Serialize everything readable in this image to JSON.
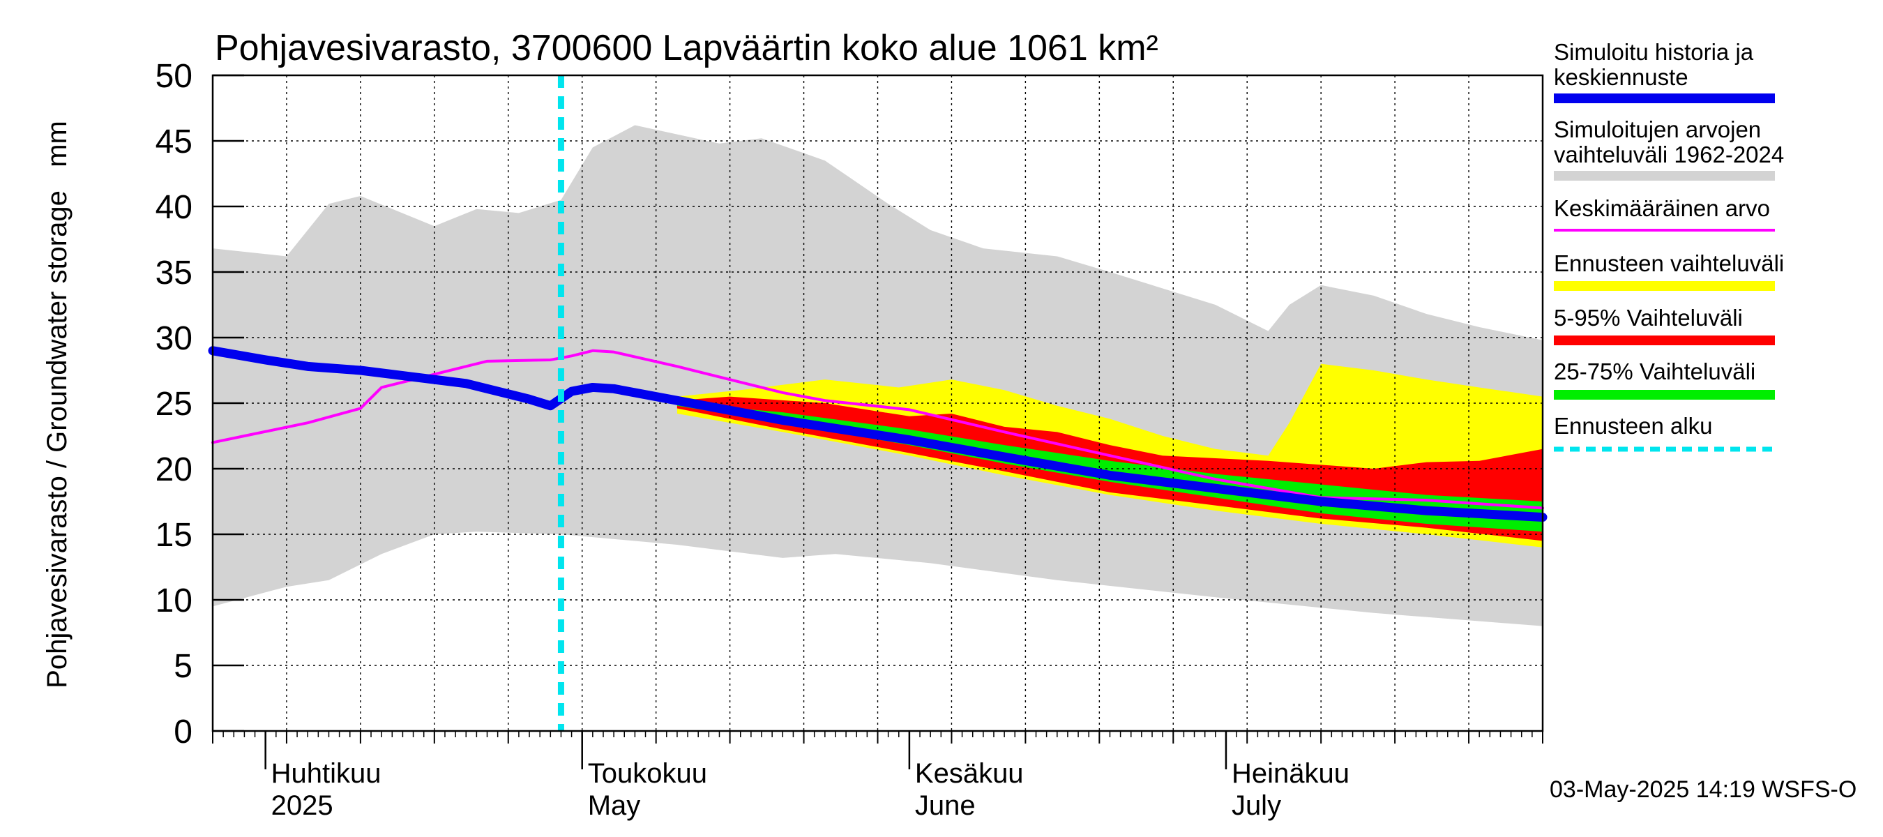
{
  "chart_data": {
    "type": "area",
    "title": "Pohjavesivarasto, 3700600 Lapväärtin koko alue 1061 km²",
    "ylabel": "Pohjavesivarasto / Groundwater storage   mm",
    "ylim": [
      0,
      50
    ],
    "yticks": [
      0,
      5,
      10,
      15,
      20,
      25,
      30,
      35,
      40,
      45,
      50
    ],
    "xlim": [
      "2025-03-27",
      "2025-07-31"
    ],
    "month_labels": [
      {
        "date": "2025-04-01",
        "fi": "Huhtikuu",
        "en": "2025"
      },
      {
        "date": "2025-05-01",
        "fi": "Toukokuu",
        "en": "May"
      },
      {
        "date": "2025-06-01",
        "fi": "Kesäkuu",
        "en": "June"
      },
      {
        "date": "2025-07-01",
        "fi": "Heinäkuu",
        "en": "July"
      }
    ],
    "forecast_start": "2025-04-29",
    "timestamp": "03-May-2025 14:19 WSFS-O",
    "legend": [
      {
        "label": "Simuloitu historia ja keskiennuste",
        "lines": [
          "Simuloitu historia ja",
          "keskiennuste"
        ],
        "color": "#0000ee",
        "style": "thick"
      },
      {
        "label": "Simuloitujen arvojen vaihteluväli 1962-2024",
        "lines": [
          "Simuloitujen arvojen",
          "vaihteluväli 1962-2024"
        ],
        "color": "#d3d3d3",
        "style": "band"
      },
      {
        "label": "Keskimääräinen arvo",
        "lines": [
          "Keskimääräinen arvo"
        ],
        "color": "#ff00ff",
        "style": "thin"
      },
      {
        "label": "Ennusteen vaihteluväli",
        "lines": [
          "Ennusteen vaihteluväli"
        ],
        "color": "#ffff00",
        "style": "band"
      },
      {
        "label": "5-95% Vaihteluväli",
        "lines": [
          "5-95% Vaihteluväli"
        ],
        "color": "#ff0000",
        "style": "band"
      },
      {
        "label": "25-75% Vaihteluväli",
        "lines": [
          "25-75% Vaihteluväli"
        ],
        "color": "#00ee00",
        "style": "band"
      },
      {
        "label": "Ennusteen alku",
        "lines": [
          "Ennusteen alku"
        ],
        "color": "#00e5ee",
        "style": "dashed"
      }
    ],
    "series": [
      {
        "name": "Simulated range upper",
        "x": [
          "2025-03-27",
          "2025-04-03",
          "2025-04-07",
          "2025-04-10",
          "2025-04-17",
          "2025-04-21",
          "2025-04-25",
          "2025-04-29",
          "2025-05-02",
          "2025-05-06",
          "2025-05-10",
          "2025-05-14",
          "2025-05-18",
          "2025-05-24",
          "2025-05-30",
          "2025-06-03",
          "2025-06-08",
          "2025-06-15",
          "2025-06-20",
          "2025-06-30",
          "2025-07-05",
          "2025-07-07",
          "2025-07-10",
          "2025-07-15",
          "2025-07-20",
          "2025-07-25",
          "2025-07-31"
        ],
        "values": [
          36.8,
          36.2,
          40.2,
          40.8,
          38.5,
          39.8,
          39.5,
          40.5,
          44.5,
          46.2,
          45.5,
          44.8,
          45.2,
          43.5,
          40.2,
          38.2,
          36.8,
          36.2,
          35.0,
          32.5,
          30.5,
          32.5,
          34.0,
          33.2,
          31.8,
          30.8,
          29.8
        ]
      },
      {
        "name": "Simulated range lower",
        "x": [
          "2025-03-27",
          "2025-04-03",
          "2025-04-07",
          "2025-04-12",
          "2025-04-17",
          "2025-04-21",
          "2025-04-29",
          "2025-05-10",
          "2025-05-20",
          "2025-05-25",
          "2025-06-03",
          "2025-06-15",
          "2025-06-30",
          "2025-07-15",
          "2025-07-31"
        ],
        "values": [
          9.5,
          11.0,
          11.5,
          13.5,
          15.0,
          15.2,
          15.0,
          14.2,
          13.2,
          13.5,
          12.8,
          11.5,
          10.2,
          9.0,
          8.0
        ]
      },
      {
        "name": "Ennusteen vaihteluväli upper",
        "x": [
          "2025-05-10",
          "2025-05-16",
          "2025-05-24",
          "2025-05-31",
          "2025-06-05",
          "2025-06-10",
          "2025-06-15",
          "2025-06-20",
          "2025-06-25",
          "2025-06-30",
          "2025-07-05",
          "2025-07-07",
          "2025-07-10",
          "2025-07-15",
          "2025-07-20",
          "2025-07-25",
          "2025-07-31"
        ],
        "values": [
          25.5,
          26.0,
          26.8,
          26.2,
          26.8,
          26.0,
          24.8,
          23.8,
          22.5,
          21.5,
          21.0,
          23.5,
          28.0,
          27.5,
          26.8,
          26.2,
          25.5
        ]
      },
      {
        "name": "Ennusteen vaihteluväli lower",
        "x": [
          "2025-05-10",
          "2025-05-20",
          "2025-06-01",
          "2025-06-10",
          "2025-06-20",
          "2025-06-30",
          "2025-07-10",
          "2025-07-20",
          "2025-07-31"
        ],
        "values": [
          24.2,
          22.8,
          21.0,
          19.5,
          18.0,
          16.8,
          15.8,
          15.0,
          14.0
        ]
      },
      {
        "name": "5-95% upper",
        "x": [
          "2025-05-10",
          "2025-05-15",
          "2025-05-24",
          "2025-06-01",
          "2025-06-05",
          "2025-06-10",
          "2025-06-15",
          "2025-06-20",
          "2025-06-25",
          "2025-06-30",
          "2025-07-05",
          "2025-07-10",
          "2025-07-15",
          "2025-07-20",
          "2025-07-25",
          "2025-07-31"
        ],
        "values": [
          25.2,
          25.5,
          25.0,
          24.0,
          24.2,
          23.2,
          22.8,
          21.8,
          21.0,
          20.8,
          20.6,
          20.3,
          20.0,
          20.5,
          20.6,
          21.5
        ]
      },
      {
        "name": "5-95% lower",
        "x": [
          "2025-05-10",
          "2025-05-20",
          "2025-06-01",
          "2025-06-10",
          "2025-06-20",
          "2025-06-30",
          "2025-07-10",
          "2025-07-20",
          "2025-07-31"
        ],
        "values": [
          24.6,
          23.0,
          21.2,
          19.8,
          18.2,
          17.2,
          16.2,
          15.5,
          14.5
        ]
      },
      {
        "name": "25-75% upper",
        "x": [
          "2025-05-10",
          "2025-05-20",
          "2025-06-01",
          "2025-06-10",
          "2025-06-20",
          "2025-06-30",
          "2025-07-10",
          "2025-07-20",
          "2025-07-31"
        ],
        "values": [
          25.0,
          24.3,
          23.0,
          21.8,
          20.6,
          19.6,
          18.8,
          18.0,
          17.5
        ]
      },
      {
        "name": "25-75% lower",
        "x": [
          "2025-05-10",
          "2025-05-20",
          "2025-06-01",
          "2025-06-10",
          "2025-06-20",
          "2025-06-30",
          "2025-07-10",
          "2025-07-20",
          "2025-07-31"
        ],
        "values": [
          24.8,
          23.5,
          21.8,
          20.4,
          19.0,
          17.8,
          16.6,
          15.8,
          15.2
        ]
      },
      {
        "name": "Keskimääräinen arvo",
        "x": [
          "2025-03-27",
          "2025-03-30",
          "2025-04-05",
          "2025-04-10",
          "2025-04-12",
          "2025-04-16",
          "2025-04-20",
          "2025-04-22",
          "2025-04-28",
          "2025-04-30",
          "2025-05-02",
          "2025-05-04",
          "2025-05-10",
          "2025-05-15",
          "2025-05-20",
          "2025-05-24",
          "2025-06-01",
          "2025-06-10",
          "2025-06-20",
          "2025-06-30",
          "2025-07-10",
          "2025-07-20",
          "2025-07-31"
        ],
        "values": [
          22.0,
          22.5,
          23.5,
          24.6,
          26.2,
          27.0,
          27.8,
          28.2,
          28.3,
          28.6,
          29.0,
          28.9,
          27.8,
          26.8,
          25.8,
          25.2,
          24.5,
          22.8,
          21.0,
          19.2,
          17.8,
          17.6,
          17.0
        ]
      },
      {
        "name": "Simuloitu historia ja keskiennuste",
        "x": [
          "2025-03-27",
          "2025-04-01",
          "2025-04-05",
          "2025-04-10",
          "2025-04-15",
          "2025-04-20",
          "2025-04-26",
          "2025-04-28",
          "2025-04-30",
          "2025-05-02",
          "2025-05-04",
          "2025-05-10",
          "2025-05-20",
          "2025-06-01",
          "2025-06-10",
          "2025-06-20",
          "2025-06-30",
          "2025-07-10",
          "2025-07-20",
          "2025-07-31"
        ],
        "values": [
          29.0,
          28.3,
          27.8,
          27.5,
          27.0,
          26.5,
          25.3,
          24.8,
          25.9,
          26.2,
          26.1,
          25.2,
          23.7,
          22.2,
          20.9,
          19.5,
          18.5,
          17.5,
          16.8,
          16.3
        ]
      }
    ]
  }
}
